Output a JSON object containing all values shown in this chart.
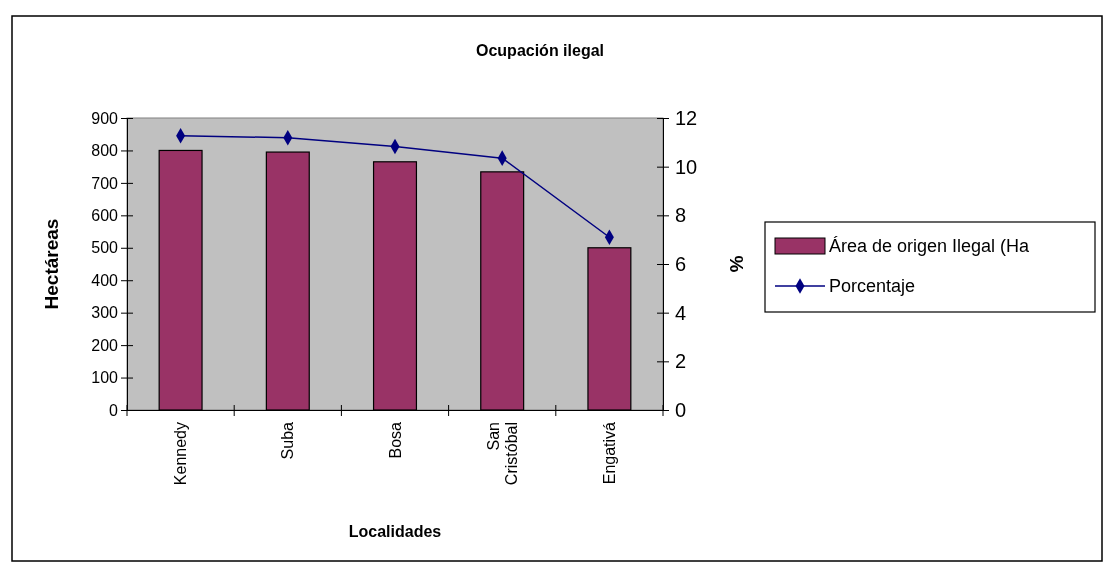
{
  "chart_data": {
    "type": "bar",
    "title": "Ocupación ilegal",
    "xlabel": "Localidades",
    "ylabel": "Hectáreas",
    "y2label": "%",
    "categories": [
      "Kennedy",
      "Suba",
      "Bosa",
      "San Cristóbal",
      "Engativá"
    ],
    "series": [
      {
        "name": "Área de origen Ilegal (Ha",
        "color": "#993366",
        "values": [
          800,
          795,
          765,
          734,
          500
        ]
      },
      {
        "name": "Porcentaje",
        "type": "line",
        "axis": "y2",
        "color": "#000080",
        "marker": "diamond",
        "values": [
          11.27,
          11.19,
          10.83,
          10.35,
          7.1
        ]
      }
    ],
    "ylim": [
      0,
      900
    ],
    "yticks": [
      0,
      100,
      200,
      300,
      400,
      500,
      600,
      700,
      800,
      900
    ],
    "y2lim": [
      0,
      12
    ],
    "y2ticks": [
      0,
      2,
      4,
      6,
      8,
      10,
      12
    ],
    "legend": "right",
    "grid": false
  }
}
